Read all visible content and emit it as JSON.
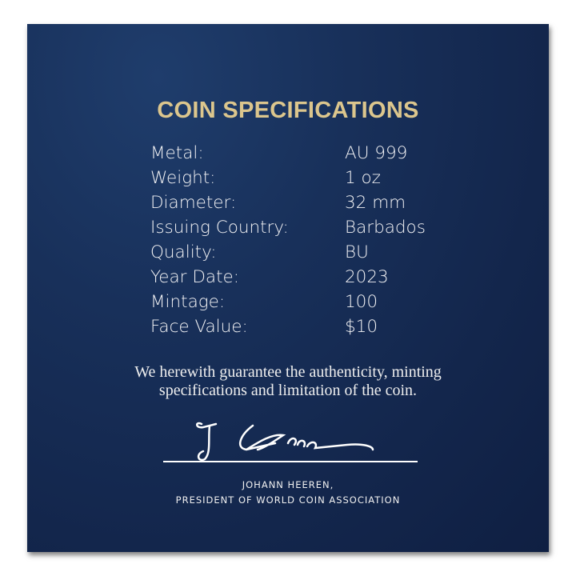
{
  "title": "COIN SPECIFICATIONS",
  "specs": [
    {
      "label": "Metal:",
      "value": "AU 999"
    },
    {
      "label": "Weight:",
      "value": "1 oz"
    },
    {
      "label": "Diameter:",
      "value": "32 mm"
    },
    {
      "label": "Issuing Country:",
      "value": "Barbados"
    },
    {
      "label": "Quality:",
      "value": "BU"
    },
    {
      "label": "Year Date:",
      "value": "2023"
    },
    {
      "label": "Mintage:",
      "value": "100"
    },
    {
      "label": "Face Value:",
      "value": "$10"
    }
  ],
  "guarantee": {
    "line1": "We herewith guarantee the authenticity, minting",
    "line2": "specifications and limitation of the coin."
  },
  "signatory": {
    "name": "JOHANN HEEREN,",
    "title": "PRESIDENT OF WORLD COIN ASSOCIATION"
  },
  "colors": {
    "background": "#15295a",
    "title": "#dcc68d",
    "text": "#f2f2f4"
  }
}
